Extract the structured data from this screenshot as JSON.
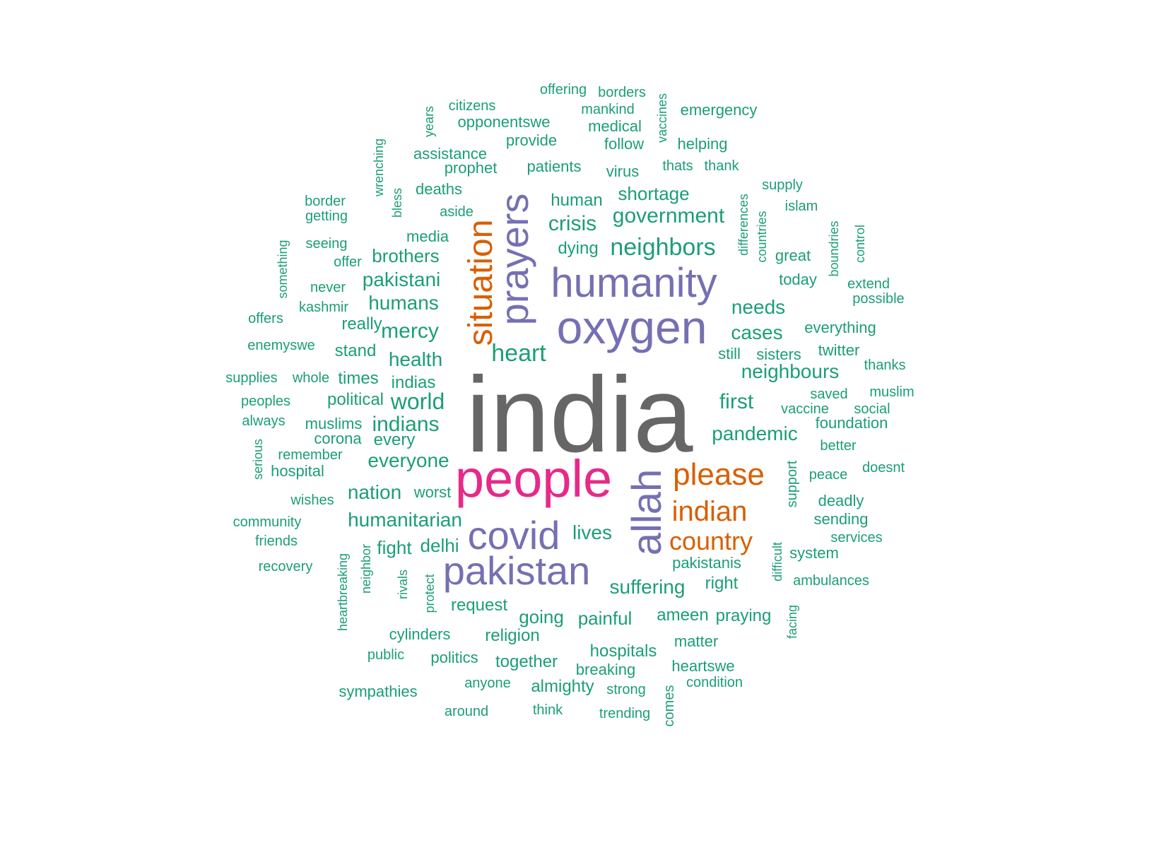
{
  "colors": {
    "dark_gray": "#666666",
    "magenta": "#e7298a",
    "purple": "#7570b3",
    "orange": "#d95f02",
    "teal": "#1b9e77",
    "background": "#ffffff"
  },
  "words": [
    {
      "text": "india",
      "color": "dark_gray",
      "vertical": false
    },
    {
      "text": "people",
      "color": "magenta",
      "vertical": false
    },
    {
      "text": "oxygen",
      "color": "purple",
      "vertical": false
    },
    {
      "text": "humanity",
      "color": "purple",
      "vertical": false
    },
    {
      "text": "pakistan",
      "color": "purple",
      "vertical": false
    },
    {
      "text": "covid",
      "color": "purple",
      "vertical": false
    },
    {
      "text": "allah",
      "color": "purple",
      "vertical": true
    },
    {
      "text": "prayers",
      "color": "purple",
      "vertical": true
    },
    {
      "text": "situation",
      "color": "orange",
      "vertical": true
    },
    {
      "text": "please",
      "color": "orange",
      "vertical": false
    },
    {
      "text": "indian",
      "color": "orange",
      "vertical": false
    },
    {
      "text": "country",
      "color": "orange",
      "vertical": false
    },
    {
      "text": "heart",
      "color": "teal",
      "vertical": false
    },
    {
      "text": "neighbors",
      "color": "teal",
      "vertical": false
    },
    {
      "text": "government",
      "color": "teal",
      "vertical": false
    },
    {
      "text": "crisis",
      "color": "teal",
      "vertical": false
    },
    {
      "text": "shortage",
      "color": "teal",
      "vertical": false
    },
    {
      "text": "human",
      "color": "teal",
      "vertical": false
    },
    {
      "text": "dying",
      "color": "teal",
      "vertical": false
    },
    {
      "text": "needs",
      "color": "teal",
      "vertical": false
    },
    {
      "text": "cases",
      "color": "teal",
      "vertical": false
    },
    {
      "text": "neighbours",
      "color": "teal",
      "vertical": false
    },
    {
      "text": "first",
      "color": "teal",
      "vertical": false
    },
    {
      "text": "pandemic",
      "color": "teal",
      "vertical": false
    },
    {
      "text": "still",
      "color": "teal",
      "vertical": false
    },
    {
      "text": "sisters",
      "color": "teal",
      "vertical": false
    },
    {
      "text": "mercy",
      "color": "teal",
      "vertical": false
    },
    {
      "text": "health",
      "color": "teal",
      "vertical": false
    },
    {
      "text": "humans",
      "color": "teal",
      "vertical": false
    },
    {
      "text": "pakistani",
      "color": "teal",
      "vertical": false
    },
    {
      "text": "brothers",
      "color": "teal",
      "vertical": false
    },
    {
      "text": "media",
      "color": "teal",
      "vertical": false
    },
    {
      "text": "really",
      "color": "teal",
      "vertical": false
    },
    {
      "text": "stand",
      "color": "teal",
      "vertical": false
    },
    {
      "text": "times",
      "color": "teal",
      "vertical": false
    },
    {
      "text": "indias",
      "color": "teal",
      "vertical": false
    },
    {
      "text": "world",
      "color": "teal",
      "vertical": false
    },
    {
      "text": "political",
      "color": "teal",
      "vertical": false
    },
    {
      "text": "indians",
      "color": "teal",
      "vertical": false
    },
    {
      "text": "muslims",
      "color": "teal",
      "vertical": false
    },
    {
      "text": "every",
      "color": "teal",
      "vertical": false
    },
    {
      "text": "corona",
      "color": "teal",
      "vertical": false
    },
    {
      "text": "everyone",
      "color": "teal",
      "vertical": false
    },
    {
      "text": "nation",
      "color": "teal",
      "vertical": false
    },
    {
      "text": "worst",
      "color": "teal",
      "vertical": false
    },
    {
      "text": "humanitarian",
      "color": "teal",
      "vertical": false
    },
    {
      "text": "fight",
      "color": "teal",
      "vertical": false
    },
    {
      "text": "delhi",
      "color": "teal",
      "vertical": false
    },
    {
      "text": "lives",
      "color": "teal",
      "vertical": false
    },
    {
      "text": "suffering",
      "color": "teal",
      "vertical": false
    },
    {
      "text": "request",
      "color": "teal",
      "vertical": false
    },
    {
      "text": "going",
      "color": "teal",
      "vertical": false
    },
    {
      "text": "painful",
      "color": "teal",
      "vertical": false
    },
    {
      "text": "ameen",
      "color": "teal",
      "vertical": false
    },
    {
      "text": "praying",
      "color": "teal",
      "vertical": false
    },
    {
      "text": "pakistanis",
      "color": "teal",
      "vertical": false
    },
    {
      "text": "right",
      "color": "teal",
      "vertical": false
    },
    {
      "text": "cylinders",
      "color": "teal",
      "vertical": false
    },
    {
      "text": "religion",
      "color": "teal",
      "vertical": false
    },
    {
      "text": "hospitals",
      "color": "teal",
      "vertical": false
    },
    {
      "text": "matter",
      "color": "teal",
      "vertical": false
    },
    {
      "text": "public",
      "color": "teal",
      "vertical": false
    },
    {
      "text": "politics",
      "color": "teal",
      "vertical": false
    },
    {
      "text": "together",
      "color": "teal",
      "vertical": false
    },
    {
      "text": "breaking",
      "color": "teal",
      "vertical": false
    },
    {
      "text": "heartswe",
      "color": "teal",
      "vertical": false
    },
    {
      "text": "sympathies",
      "color": "teal",
      "vertical": false
    },
    {
      "text": "anyone",
      "color": "teal",
      "vertical": false
    },
    {
      "text": "almighty",
      "color": "teal",
      "vertical": false
    },
    {
      "text": "strong",
      "color": "teal",
      "vertical": false
    },
    {
      "text": "condition",
      "color": "teal",
      "vertical": false
    },
    {
      "text": "around",
      "color": "teal",
      "vertical": false
    },
    {
      "text": "think",
      "color": "teal",
      "vertical": false
    },
    {
      "text": "trending",
      "color": "teal",
      "vertical": false
    },
    {
      "text": "comes",
      "color": "teal",
      "vertical": true
    },
    {
      "text": "offering",
      "color": "teal",
      "vertical": false
    },
    {
      "text": "borders",
      "color": "teal",
      "vertical": false
    },
    {
      "text": "citizens",
      "color": "teal",
      "vertical": false
    },
    {
      "text": "mankind",
      "color": "teal",
      "vertical": false
    },
    {
      "text": "emergency",
      "color": "teal",
      "vertical": false
    },
    {
      "text": "opponentswe",
      "color": "teal",
      "vertical": false
    },
    {
      "text": "medical",
      "color": "teal",
      "vertical": false
    },
    {
      "text": "vaccines",
      "color": "teal",
      "vertical": true
    },
    {
      "text": "years",
      "color": "teal",
      "vertical": true
    },
    {
      "text": "provide",
      "color": "teal",
      "vertical": false
    },
    {
      "text": "follow",
      "color": "teal",
      "vertical": false
    },
    {
      "text": "helping",
      "color": "teal",
      "vertical": false
    },
    {
      "text": "assistance",
      "color": "teal",
      "vertical": false
    },
    {
      "text": "wrenching",
      "color": "teal",
      "vertical": true
    },
    {
      "text": "prophet",
      "color": "teal",
      "vertical": false
    },
    {
      "text": "patients",
      "color": "teal",
      "vertical": false
    },
    {
      "text": "virus",
      "color": "teal",
      "vertical": false
    },
    {
      "text": "thats",
      "color": "teal",
      "vertical": false
    },
    {
      "text": "thank",
      "color": "teal",
      "vertical": false
    },
    {
      "text": "deaths",
      "color": "teal",
      "vertical": false
    },
    {
      "text": "bless",
      "color": "teal",
      "vertical": true
    },
    {
      "text": "supply",
      "color": "teal",
      "vertical": false
    },
    {
      "text": "border",
      "color": "teal",
      "vertical": false
    },
    {
      "text": "getting",
      "color": "teal",
      "vertical": false
    },
    {
      "text": "aside",
      "color": "teal",
      "vertical": false
    },
    {
      "text": "islam",
      "color": "teal",
      "vertical": false
    },
    {
      "text": "differences",
      "color": "teal",
      "vertical": true
    },
    {
      "text": "countries",
      "color": "teal",
      "vertical": true
    },
    {
      "text": "boundries",
      "color": "teal",
      "vertical": true
    },
    {
      "text": "control",
      "color": "teal",
      "vertical": true
    },
    {
      "text": "something",
      "color": "teal",
      "vertical": true
    },
    {
      "text": "seeing",
      "color": "teal",
      "vertical": false
    },
    {
      "text": "offer",
      "color": "teal",
      "vertical": false
    },
    {
      "text": "great",
      "color": "teal",
      "vertical": false
    },
    {
      "text": "never",
      "color": "teal",
      "vertical": false
    },
    {
      "text": "today",
      "color": "teal",
      "vertical": false
    },
    {
      "text": "extend",
      "color": "teal",
      "vertical": false
    },
    {
      "text": "kashmir",
      "color": "teal",
      "vertical": false
    },
    {
      "text": "possible",
      "color": "teal",
      "vertical": false
    },
    {
      "text": "offers",
      "color": "teal",
      "vertical": false
    },
    {
      "text": "everything",
      "color": "teal",
      "vertical": false
    },
    {
      "text": "enemyswe",
      "color": "teal",
      "vertical": false
    },
    {
      "text": "twitter",
      "color": "teal",
      "vertical": false
    },
    {
      "text": "thanks",
      "color": "teal",
      "vertical": false
    },
    {
      "text": "supplies",
      "color": "teal",
      "vertical": false
    },
    {
      "text": "whole",
      "color": "teal",
      "vertical": false
    },
    {
      "text": "saved",
      "color": "teal",
      "vertical": false
    },
    {
      "text": "muslim",
      "color": "teal",
      "vertical": false
    },
    {
      "text": "peoples",
      "color": "teal",
      "vertical": false
    },
    {
      "text": "vaccine",
      "color": "teal",
      "vertical": false
    },
    {
      "text": "social",
      "color": "teal",
      "vertical": false
    },
    {
      "text": "always",
      "color": "teal",
      "vertical": false
    },
    {
      "text": "foundation",
      "color": "teal",
      "vertical": false
    },
    {
      "text": "better",
      "color": "teal",
      "vertical": false
    },
    {
      "text": "serious",
      "color": "teal",
      "vertical": true
    },
    {
      "text": "remember",
      "color": "teal",
      "vertical": false
    },
    {
      "text": "hospital",
      "color": "teal",
      "vertical": false
    },
    {
      "text": "support",
      "color": "teal",
      "vertical": true
    },
    {
      "text": "peace",
      "color": "teal",
      "vertical": false
    },
    {
      "text": "doesnt",
      "color": "teal",
      "vertical": false
    },
    {
      "text": "wishes",
      "color": "teal",
      "vertical": false
    },
    {
      "text": "deadly",
      "color": "teal",
      "vertical": false
    },
    {
      "text": "community",
      "color": "teal",
      "vertical": false
    },
    {
      "text": "sending",
      "color": "teal",
      "vertical": false
    },
    {
      "text": "friends",
      "color": "teal",
      "vertical": false
    },
    {
      "text": "services",
      "color": "teal",
      "vertical": false
    },
    {
      "text": "difficult",
      "color": "teal",
      "vertical": true
    },
    {
      "text": "system",
      "color": "teal",
      "vertical": false
    },
    {
      "text": "recovery",
      "color": "teal",
      "vertical": false
    },
    {
      "text": "heartbreaking",
      "color": "teal",
      "vertical": true
    },
    {
      "text": "neighbor",
      "color": "teal",
      "vertical": true
    },
    {
      "text": "rivals",
      "color": "teal",
      "vertical": true
    },
    {
      "text": "protect",
      "color": "teal",
      "vertical": true
    },
    {
      "text": "ambulances",
      "color": "teal",
      "vertical": false
    },
    {
      "text": "facing",
      "color": "teal",
      "vertical": true
    }
  ]
}
